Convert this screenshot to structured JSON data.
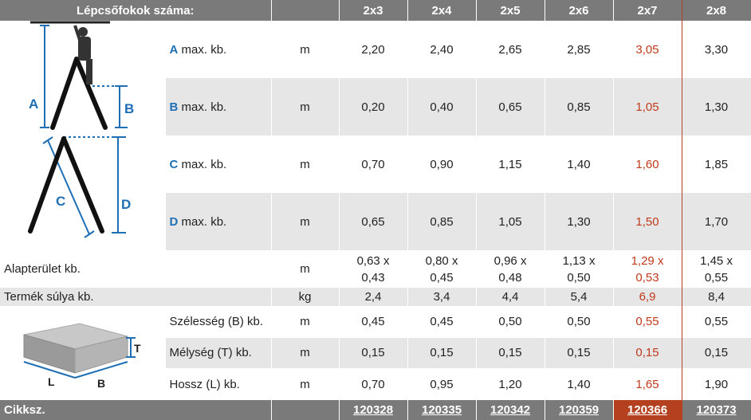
{
  "header": {
    "label": "Lépcsőfokok száma:",
    "columns": [
      "2x3",
      "2x4",
      "2x5",
      "2x6",
      "2x7",
      "2x8"
    ]
  },
  "ladder_dims": [
    {
      "letter": "A",
      "text": "max. kb.",
      "unit": "m",
      "values": [
        "2,20",
        "2,40",
        "2,65",
        "2,85",
        "3,05",
        "3,30"
      ]
    },
    {
      "letter": "B",
      "text": "max. kb.",
      "unit": "m",
      "values": [
        "0,20",
        "0,40",
        "0,65",
        "0,85",
        "1,05",
        "1,30"
      ]
    },
    {
      "letter": "C",
      "text": "max. kb.",
      "unit": "m",
      "values": [
        "0,70",
        "0,90",
        "1,15",
        "1,40",
        "1,60",
        "1,85"
      ]
    },
    {
      "letter": "D",
      "text": "max. kb.",
      "unit": "m",
      "values": [
        "0,65",
        "0,85",
        "1,05",
        "1,30",
        "1,50",
        "1,70"
      ]
    }
  ],
  "area": {
    "label": "Alapterület kb.",
    "unit": "m",
    "values": [
      [
        "0,63 x",
        "0,43"
      ],
      [
        "0,80 x",
        "0,45"
      ],
      [
        "0,96 x",
        "0,48"
      ],
      [
        "1,13 x",
        "0,50"
      ],
      [
        "1,29 x",
        "0,53"
      ],
      [
        "1,45 x",
        "0,55"
      ]
    ]
  },
  "weight": {
    "label": "Termék súlya kb.",
    "unit": "kg",
    "values": [
      "2,4",
      "3,4",
      "4,4",
      "5,4",
      "6,9",
      "8,4"
    ]
  },
  "package": [
    {
      "label": "Szélesség (B) kb.",
      "unit": "m",
      "values": [
        "0,45",
        "0,45",
        "0,50",
        "0,50",
        "0,55",
        "0,55"
      ]
    },
    {
      "label": "Mélység (T) kb.",
      "unit": "m",
      "values": [
        "0,15",
        "0,15",
        "0,15",
        "0,15",
        "0,15",
        "0,15"
      ]
    },
    {
      "label": "Hossz (L) kb.",
      "unit": "m",
      "values": [
        "0,70",
        "0,95",
        "1,20",
        "1,40",
        "1,65",
        "1,90"
      ]
    }
  ],
  "illustration_labels": {
    "a": "A",
    "b": "B",
    "c": "C",
    "d": "D",
    "t": "T",
    "l": "L",
    "box_b": "B"
  },
  "footer": {
    "label": "Cikksz.",
    "codes": [
      "120328",
      "120335",
      "120342",
      "120359",
      "120366",
      "120373"
    ]
  },
  "colors": {
    "header_bg": "#7a7a7a",
    "stripe_bg": "#e6e6e6",
    "blue": "#1f6fb5",
    "highlight": "#c0391b",
    "highlight_bg": "#b5401f"
  },
  "highlight_column": 4
}
